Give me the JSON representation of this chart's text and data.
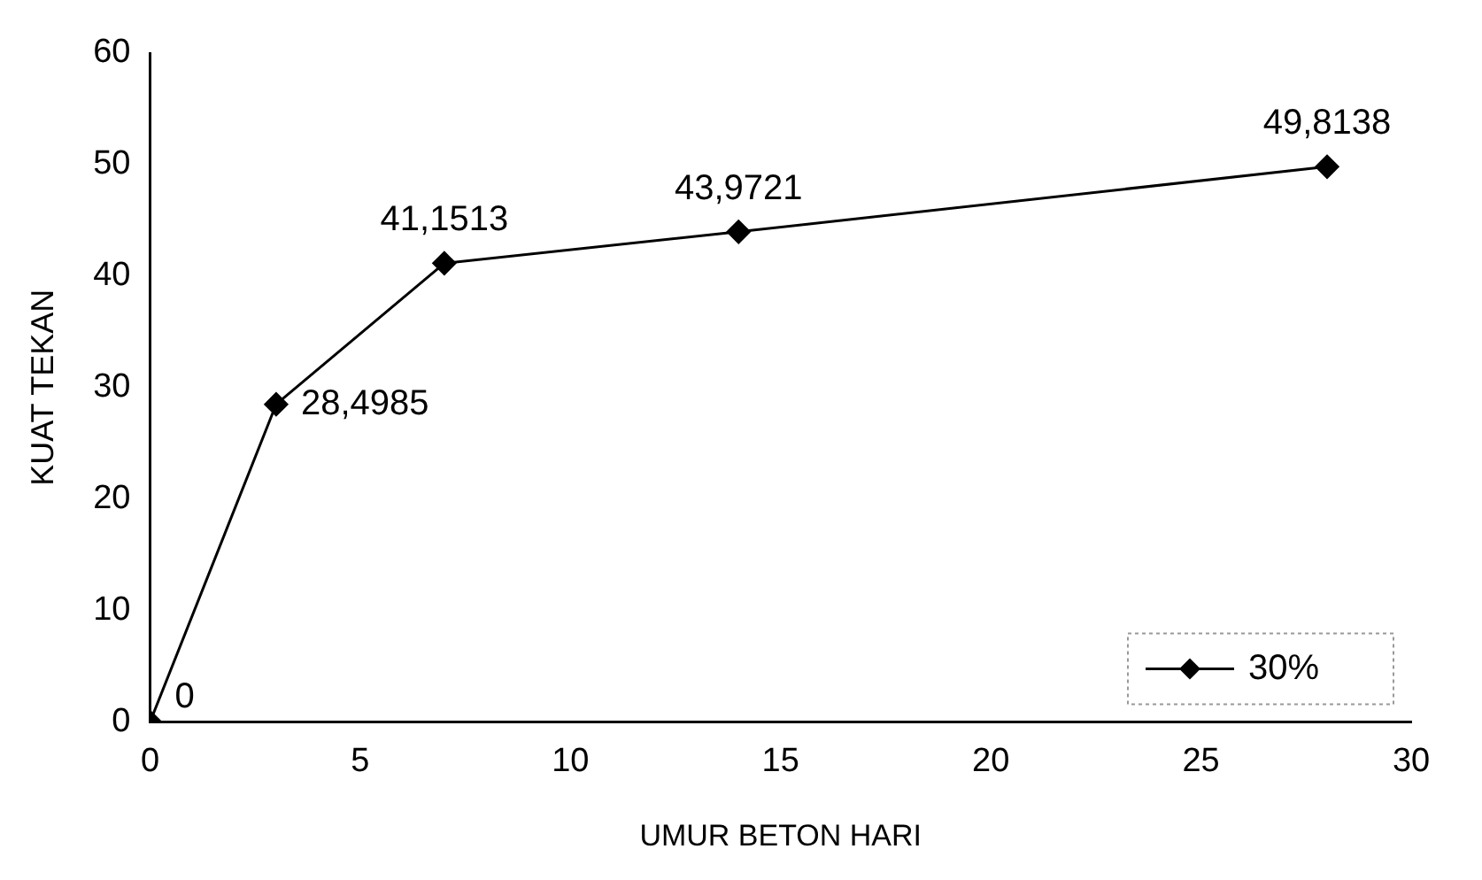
{
  "chart_data": {
    "type": "line",
    "xlabel": "UMUR BETON HARI",
    "ylabel": "KUAT TEKAN",
    "x": [
      0,
      3,
      7,
      14,
      28
    ],
    "series": [
      {
        "name": "30%",
        "color": "#000000",
        "values": [
          0,
          28.4985,
          41.1513,
          43.9721,
          49.8138
        ],
        "value_labels": [
          "0",
          "28,4985",
          "41,1513",
          "43,9721",
          "49,8138"
        ]
      }
    ],
    "xlim": [
      0,
      30
    ],
    "xticks": [
      0,
      5,
      10,
      15,
      20,
      25,
      30
    ],
    "ylim": [
      0,
      60
    ],
    "yticks": [
      0,
      10,
      20,
      30,
      40,
      50,
      60
    ],
    "grid": false,
    "legend": "bottom right",
    "marker": "diamond",
    "line_style": "solid"
  }
}
